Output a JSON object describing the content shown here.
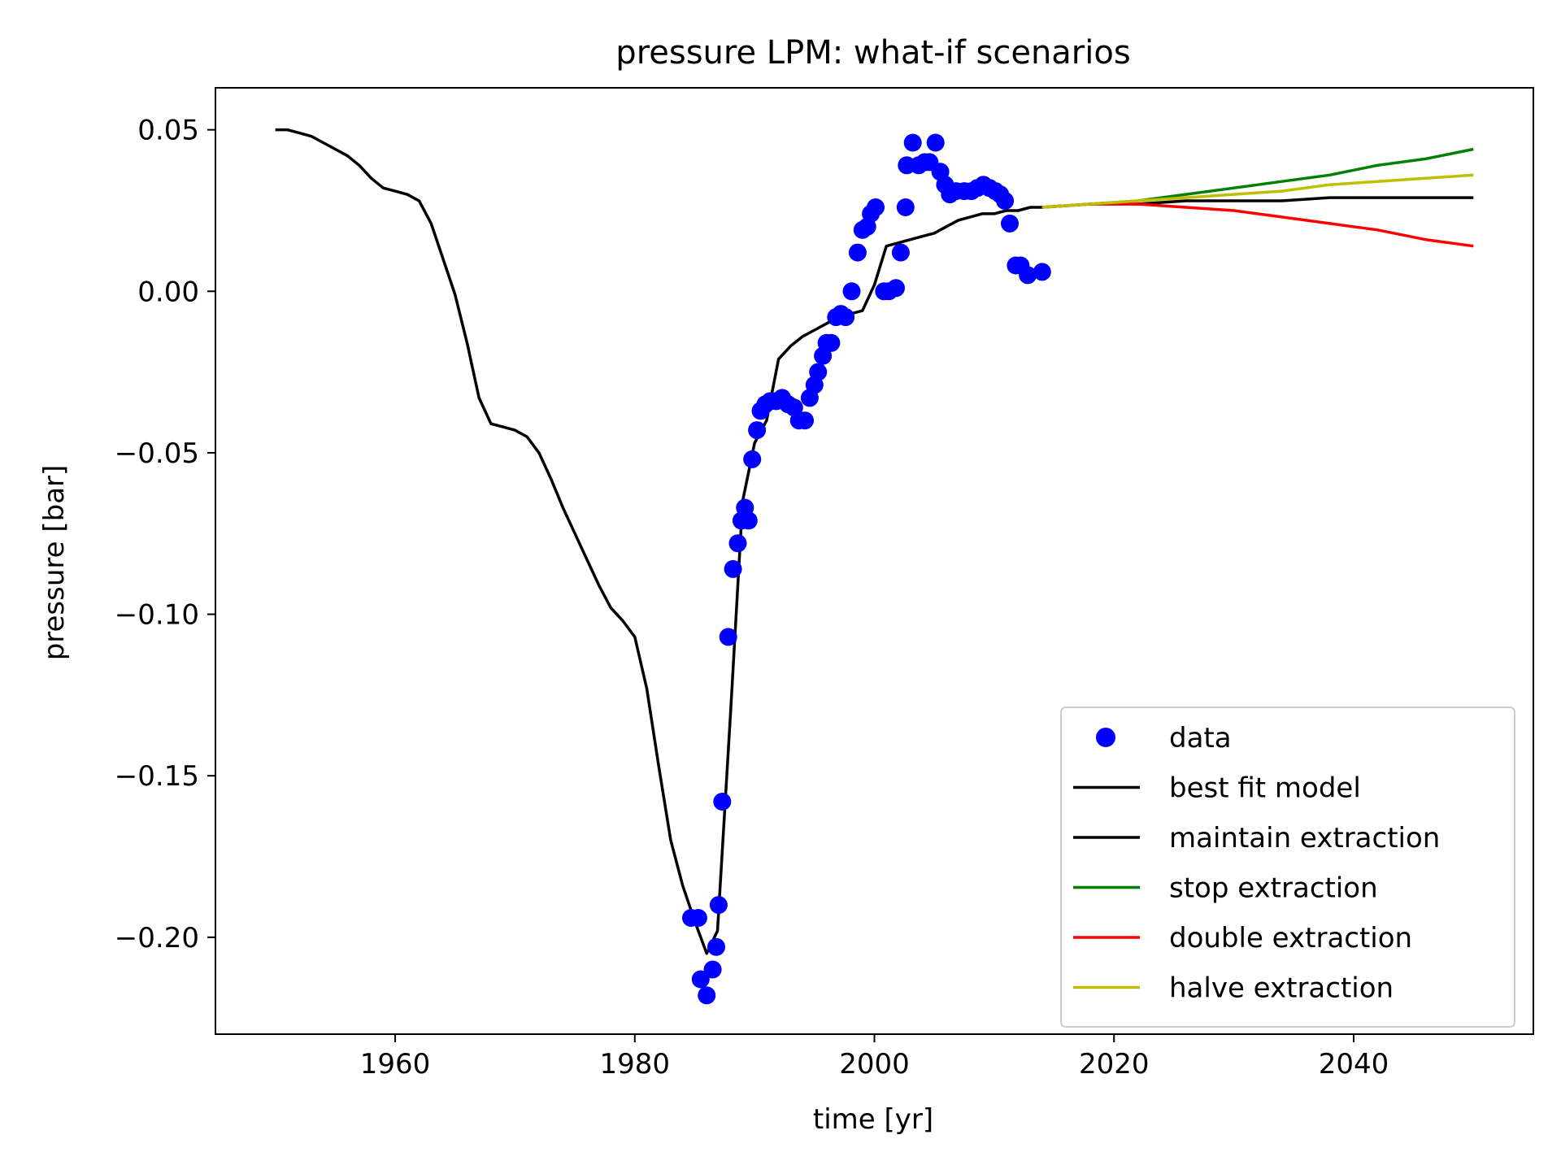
{
  "chart_data": {
    "type": "line",
    "title": "pressure LPM: what-if scenarios",
    "xlabel": "time [yr]",
    "ylabel": "pressure [bar]",
    "xlim": [
      1945,
      2055
    ],
    "ylim": [
      -0.23,
      0.063
    ],
    "xticks": [
      {
        "value": 1960,
        "label": "1960"
      },
      {
        "value": 1980,
        "label": "1980"
      },
      {
        "value": 2000,
        "label": "2000"
      },
      {
        "value": 2020,
        "label": "2020"
      },
      {
        "value": 2040,
        "label": "2040"
      }
    ],
    "yticks": [
      {
        "value": 0.05,
        "label": "0.05"
      },
      {
        "value": 0.0,
        "label": "0.00"
      },
      {
        "value": -0.05,
        "label": "−0.05"
      },
      {
        "value": -0.1,
        "label": "−0.10"
      },
      {
        "value": -0.15,
        "label": "−0.15"
      },
      {
        "value": -0.2,
        "label": "−0.20"
      }
    ],
    "grid": false,
    "legend_position": "bottom-right",
    "series": [
      {
        "name": "data",
        "kind": "scatter",
        "color": "#0000ff",
        "points": [
          [
            1984.7,
            -0.194
          ],
          [
            1985.3,
            -0.194
          ],
          [
            1985.5,
            -0.213
          ],
          [
            1986.0,
            -0.218
          ],
          [
            1986.5,
            -0.21
          ],
          [
            1986.8,
            -0.203
          ],
          [
            1987.0,
            -0.19
          ],
          [
            1987.3,
            -0.158
          ],
          [
            1987.8,
            -0.107
          ],
          [
            1988.2,
            -0.086
          ],
          [
            1988.6,
            -0.078
          ],
          [
            1988.9,
            -0.071
          ],
          [
            1989.2,
            -0.067
          ],
          [
            1989.5,
            -0.071
          ],
          [
            1989.8,
            -0.052
          ],
          [
            1990.2,
            -0.043
          ],
          [
            1990.5,
            -0.037
          ],
          [
            1990.9,
            -0.035
          ],
          [
            1991.3,
            -0.034
          ],
          [
            1991.8,
            -0.034
          ],
          [
            1992.3,
            -0.033
          ],
          [
            1992.8,
            -0.035
          ],
          [
            1993.3,
            -0.036
          ],
          [
            1993.7,
            -0.04
          ],
          [
            1994.2,
            -0.04
          ],
          [
            1994.6,
            -0.033
          ],
          [
            1995.0,
            -0.029
          ],
          [
            1995.3,
            -0.025
          ],
          [
            1995.7,
            -0.02
          ],
          [
            1996.0,
            -0.016
          ],
          [
            1996.4,
            -0.016
          ],
          [
            1996.8,
            -0.008
          ],
          [
            1997.2,
            -0.007
          ],
          [
            1997.6,
            -0.008
          ],
          [
            1998.1,
            0.0
          ],
          [
            1998.6,
            0.012
          ],
          [
            1999.0,
            0.019
          ],
          [
            1999.4,
            0.02
          ],
          [
            1999.7,
            0.024
          ],
          [
            2000.1,
            0.026
          ],
          [
            2000.8,
            0.0
          ],
          [
            2001.2,
            0.0
          ],
          [
            2001.8,
            0.001
          ],
          [
            2002.2,
            0.012
          ],
          [
            2002.6,
            0.026
          ],
          [
            2002.7,
            0.039
          ],
          [
            2003.2,
            0.046
          ],
          [
            2003.7,
            0.039
          ],
          [
            2004.2,
            0.04
          ],
          [
            2004.6,
            0.04
          ],
          [
            2005.1,
            0.046
          ],
          [
            2005.5,
            0.037
          ],
          [
            2005.9,
            0.033
          ],
          [
            2006.3,
            0.03
          ],
          [
            2006.8,
            0.031
          ],
          [
            2007.5,
            0.031
          ],
          [
            2008.1,
            0.031
          ],
          [
            2008.6,
            0.032
          ],
          [
            2009.1,
            0.033
          ],
          [
            2009.6,
            0.032
          ],
          [
            2010.1,
            0.031
          ],
          [
            2010.5,
            0.03
          ],
          [
            2010.9,
            0.028
          ],
          [
            2011.3,
            0.021
          ],
          [
            2011.8,
            0.008
          ],
          [
            2012.2,
            0.008
          ],
          [
            2012.8,
            0.005
          ],
          [
            2014.0,
            0.006
          ]
        ]
      },
      {
        "name": "best fit model",
        "kind": "line",
        "color": "#000000",
        "points": [
          [
            1950,
            0.05
          ],
          [
            1951,
            0.05
          ],
          [
            1952,
            0.049
          ],
          [
            1953,
            0.048
          ],
          [
            1954,
            0.046
          ],
          [
            1955,
            0.044
          ],
          [
            1956,
            0.042
          ],
          [
            1957,
            0.039
          ],
          [
            1958,
            0.035
          ],
          [
            1959,
            0.032
          ],
          [
            1960,
            0.031
          ],
          [
            1961,
            0.03
          ],
          [
            1962,
            0.028
          ],
          [
            1963,
            0.021
          ],
          [
            1964,
            0.01
          ],
          [
            1965,
            -0.001
          ],
          [
            1966,
            -0.016
          ],
          [
            1967,
            -0.033
          ],
          [
            1968,
            -0.041
          ],
          [
            1969,
            -0.042
          ],
          [
            1970,
            -0.043
          ],
          [
            1971,
            -0.045
          ],
          [
            1972,
            -0.05
          ],
          [
            1973,
            -0.058
          ],
          [
            1974,
            -0.067
          ],
          [
            1975,
            -0.075
          ],
          [
            1976,
            -0.083
          ],
          [
            1977,
            -0.091
          ],
          [
            1978,
            -0.098
          ],
          [
            1979,
            -0.102
          ],
          [
            1980,
            -0.107
          ],
          [
            1981,
            -0.123
          ],
          [
            1982,
            -0.147
          ],
          [
            1983,
            -0.17
          ],
          [
            1984,
            -0.184
          ],
          [
            1985,
            -0.195
          ],
          [
            1986,
            -0.205
          ],
          [
            1986.9,
            -0.198
          ],
          [
            1988,
            -0.13
          ],
          [
            1989,
            -0.065
          ],
          [
            1990,
            -0.047
          ],
          [
            1991,
            -0.04
          ],
          [
            1992,
            -0.021
          ],
          [
            1993,
            -0.017
          ],
          [
            1994,
            -0.014
          ],
          [
            1995,
            -0.012
          ],
          [
            1996,
            -0.01
          ],
          [
            1997,
            -0.008
          ],
          [
            1998,
            -0.007
          ],
          [
            1999,
            -0.006
          ],
          [
            2000,
            0.002
          ],
          [
            2001,
            0.014
          ],
          [
            2002,
            0.015
          ],
          [
            2003,
            0.016
          ],
          [
            2004,
            0.017
          ],
          [
            2005,
            0.018
          ],
          [
            2006,
            0.02
          ],
          [
            2007,
            0.022
          ],
          [
            2008,
            0.023
          ],
          [
            2009,
            0.024
          ],
          [
            2010,
            0.024
          ],
          [
            2011,
            0.025
          ],
          [
            2012,
            0.025
          ],
          [
            2013,
            0.026
          ],
          [
            2014,
            0.026
          ]
        ]
      },
      {
        "name": "maintain extraction",
        "kind": "line",
        "color": "#000000",
        "points": [
          [
            2014,
            0.026
          ],
          [
            2018,
            0.027
          ],
          [
            2022,
            0.027
          ],
          [
            2026,
            0.028
          ],
          [
            2030,
            0.028
          ],
          [
            2034,
            0.028
          ],
          [
            2038,
            0.029
          ],
          [
            2042,
            0.029
          ],
          [
            2046,
            0.029
          ],
          [
            2050,
            0.029
          ]
        ]
      },
      {
        "name": "stop extraction",
        "kind": "line",
        "color": "#008000",
        "points": [
          [
            2014,
            0.026
          ],
          [
            2018,
            0.027
          ],
          [
            2022,
            0.028
          ],
          [
            2026,
            0.03
          ],
          [
            2030,
            0.032
          ],
          [
            2034,
            0.034
          ],
          [
            2038,
            0.036
          ],
          [
            2042,
            0.039
          ],
          [
            2046,
            0.041
          ],
          [
            2050,
            0.044
          ]
        ]
      },
      {
        "name": "double extraction",
        "kind": "line",
        "color": "#ff0000",
        "points": [
          [
            2014,
            0.026
          ],
          [
            2018,
            0.027
          ],
          [
            2022,
            0.027
          ],
          [
            2026,
            0.026
          ],
          [
            2030,
            0.025
          ],
          [
            2034,
            0.023
          ],
          [
            2038,
            0.021
          ],
          [
            2042,
            0.019
          ],
          [
            2046,
            0.016
          ],
          [
            2050,
            0.014
          ]
        ]
      },
      {
        "name": "halve extraction",
        "kind": "line",
        "color": "#bfbf00",
        "points": [
          [
            2014,
            0.026
          ],
          [
            2018,
            0.027
          ],
          [
            2022,
            0.028
          ],
          [
            2026,
            0.029
          ],
          [
            2030,
            0.03
          ],
          [
            2034,
            0.031
          ],
          [
            2038,
            0.033
          ],
          [
            2042,
            0.034
          ],
          [
            2046,
            0.035
          ],
          [
            2050,
            0.036
          ]
        ]
      }
    ]
  }
}
